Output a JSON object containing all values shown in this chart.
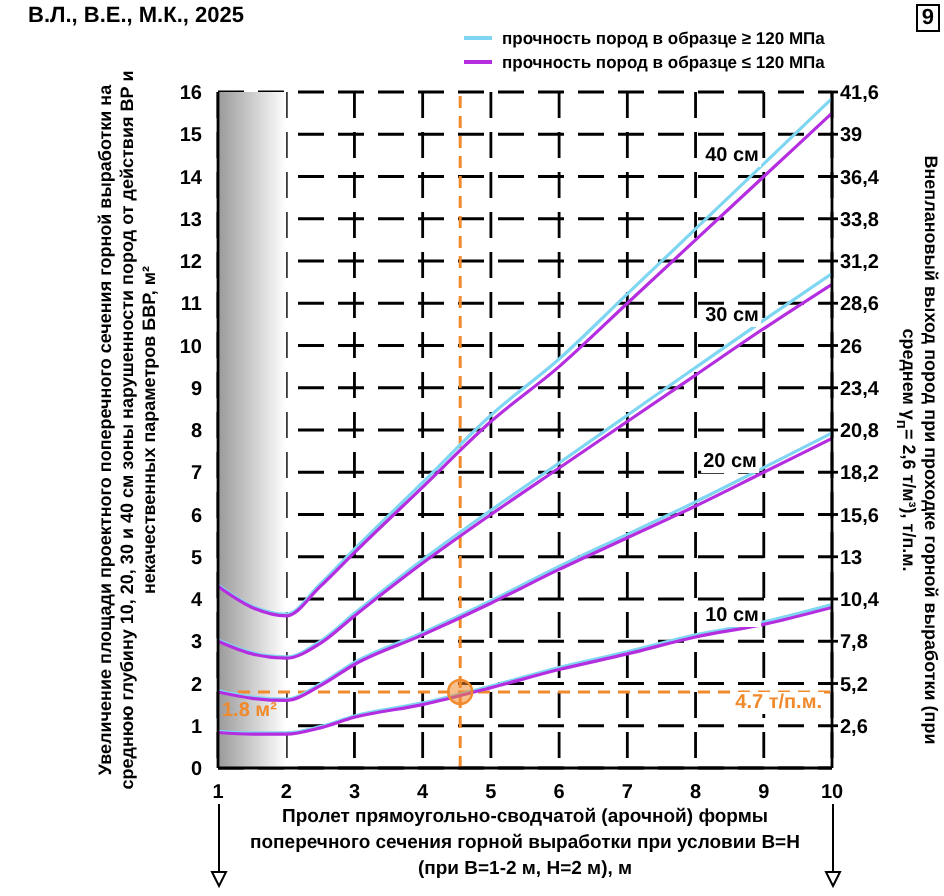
{
  "chart_data": {
    "type": "line",
    "xlabel": "Пролет прямоугольно-сводчатой (арочной) формы поперечного сечения горной выработки при условии В=Н (при В=1-2 м, Н=2 м), м",
    "ylabel": "Увеличение площади проектного поперечного сечения горной выработки на среднюю глубину 10, 20, 30 и 40 см зоны нарушенности пород от действия ВР и некачественных параметров БВР, м²",
    "y2label": "Внеплановый выход пород при проходке горной выработки (при среднем γ$_{п}$= 2,6 т/м³), т/п.м.",
    "x": [
      1,
      1.5,
      2,
      2.5,
      3,
      4,
      5,
      6,
      7,
      8,
      9,
      10
    ],
    "series": [
      {
        "name": "прочность пород в образце ≥ 120 МПа",
        "color": "#7fd6f2",
        "values": [
          0.87,
          0.83,
          0.83,
          0.98,
          1.23,
          1.54,
          1.94,
          2.38,
          2.75,
          3.15,
          3.46,
          3.87
        ]
      },
      {
        "name": "прочность пород в образце ≤ 120 МПа",
        "color": "#b42ee0",
        "values": [
          0.84,
          0.8,
          0.8,
          0.95,
          1.2,
          1.5,
          1.9,
          2.33,
          2.7,
          3.1,
          3.4,
          3.8
        ]
      },
      {
        "color": "#7fd6f2",
        "values": [
          1.83,
          1.68,
          1.63,
          1.99,
          2.5,
          3.2,
          3.96,
          4.77,
          5.53,
          6.3,
          7.11,
          7.93
        ]
      },
      {
        "color": "#b42ee0",
        "values": [
          1.8,
          1.65,
          1.6,
          1.95,
          2.45,
          3.15,
          3.9,
          4.7,
          5.45,
          6.2,
          7.0,
          7.8
        ]
      },
      {
        "color": "#7fd6f2",
        "values": [
          3.03,
          2.73,
          2.63,
          3.0,
          3.66,
          4.93,
          6.1,
          7.22,
          8.35,
          9.48,
          10.6,
          11.7
        ]
      },
      {
        "color": "#b42ee0",
        "values": [
          3.0,
          2.7,
          2.6,
          2.95,
          3.6,
          4.85,
          6.0,
          7.1,
          8.2,
          9.3,
          10.4,
          11.45
        ]
      },
      {
        "color": "#7fd6f2",
        "values": [
          4.33,
          3.83,
          3.64,
          4.36,
          5.18,
          6.76,
          8.35,
          9.68,
          11.22,
          12.76,
          14.3,
          15.85
        ]
      },
      {
        "color": "#b42ee0",
        "values": [
          4.3,
          3.8,
          3.6,
          4.3,
          5.1,
          6.65,
          8.2,
          9.5,
          11.0,
          12.5,
          14.0,
          15.5
        ]
      },
      {
        "type": "scatter",
        "color": "#f08a2c",
        "marker": "circle",
        "x": [
          4.55
        ],
        "values": [
          1.8
        ]
      }
    ],
    "xlim": [
      1,
      10
    ],
    "xticks": [
      1,
      2,
      3,
      4,
      5,
      6,
      7,
      8,
      9,
      10
    ],
    "ylim": [
      0,
      16
    ],
    "yticks": [
      0,
      1,
      2,
      3,
      4,
      5,
      6,
      7,
      8,
      9,
      10,
      11,
      12,
      13,
      14,
      15,
      16
    ],
    "y2lim": [
      0,
      41.6
    ],
    "y2ticks": [
      {
        "value": 2.6,
        "label": "2,6"
      },
      {
        "value": 5.2,
        "label": "5,2"
      },
      {
        "value": 7.8,
        "label": "7,8"
      },
      {
        "value": 10.4,
        "label": "10,4"
      },
      13,
      {
        "value": 15.6,
        "label": "15,6"
      },
      {
        "value": 18.2,
        "label": "18,2"
      },
      {
        "value": 20.8,
        "label": "20,8"
      },
      {
        "value": 23.4,
        "label": "23,4"
      },
      26,
      {
        "value": 28.6,
        "label": "28,6"
      },
      {
        "value": 31.2,
        "label": "31,2"
      },
      {
        "value": 33.8,
        "label": "33,8"
      },
      {
        "value": 36.4,
        "label": "36,4"
      },
      39,
      {
        "value": 41.6,
        "label": "41,6"
      }
    ],
    "grid": true,
    "legend": "top right",
    "ref_lines": [
      {
        "axis": "y",
        "value": 1.8,
        "label": "1.8 м²",
        "color": "#f08a2c",
        "line_style": "dashed"
      },
      {
        "axis": "x",
        "value": 4.55,
        "color": "#f08a2c",
        "line_style": "dashed"
      }
    ],
    "bands": [
      {
        "axis": "x",
        "from": 1,
        "to": 2,
        "color": "#9a9a9a"
      }
    ],
    "annotations": [
      "В.Л., В.Е., М.К., 2025",
      "9",
      "4.7 т/п.м.",
      "40 см",
      "30 см",
      "20 см",
      "10 см"
    ]
  }
}
